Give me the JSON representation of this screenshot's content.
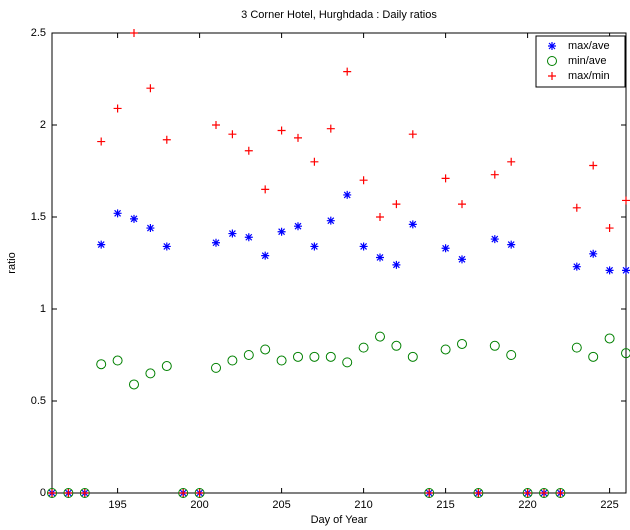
{
  "chart_data": {
    "type": "scatter",
    "title": "3 Corner Hotel, Hurghdada : Daily ratios",
    "x_label": "Day of Year",
    "y_label": "ratio",
    "x": [
      191,
      192,
      193,
      194,
      195,
      196,
      197,
      198,
      199,
      200,
      201,
      202,
      203,
      204,
      205,
      206,
      207,
      208,
      209,
      210,
      211,
      212,
      213,
      214,
      215,
      216,
      217,
      218,
      219,
      220,
      221,
      222,
      223,
      224,
      225,
      226
    ],
    "series": [
      {
        "name": "max/ave",
        "color": "#0000ff",
        "marker": "star",
        "values": [
          0,
          0,
          0,
          1.35,
          1.52,
          1.49,
          1.44,
          1.34,
          0,
          0,
          1.36,
          1.41,
          1.39,
          1.29,
          1.42,
          1.45,
          1.34,
          1.48,
          1.62,
          1.34,
          1.28,
          1.24,
          1.46,
          0,
          1.33,
          1.27,
          0,
          1.38,
          1.35,
          0,
          0,
          0,
          1.23,
          1.3,
          1.21,
          1.21
        ]
      },
      {
        "name": "min/ave",
        "color": "#008000",
        "marker": "circle",
        "values": [
          0,
          0,
          0,
          0.7,
          0.72,
          0.59,
          0.65,
          0.69,
          0,
          0,
          0.68,
          0.72,
          0.75,
          0.78,
          0.72,
          0.74,
          0.74,
          0.74,
          0.71,
          0.79,
          0.85,
          0.8,
          0.74,
          0,
          0.78,
          0.81,
          0,
          0.8,
          0.75,
          0,
          0,
          0,
          0.79,
          0.74,
          0.84,
          0.76
        ]
      },
      {
        "name": "max/min",
        "color": "#ff0000",
        "marker": "plus",
        "values": [
          0,
          0,
          0,
          1.91,
          2.09,
          2.5,
          2.2,
          1.92,
          0,
          0,
          2.0,
          1.95,
          1.86,
          1.65,
          1.97,
          1.93,
          1.8,
          1.98,
          2.29,
          1.7,
          1.5,
          1.57,
          1.95,
          0,
          1.71,
          1.57,
          0,
          1.73,
          1.8,
          0,
          0,
          0,
          1.55,
          1.78,
          1.44,
          1.59
        ]
      }
    ],
    "xlim": [
      191,
      226
    ],
    "ylim": [
      0,
      2.5
    ],
    "xticks": [
      195,
      200,
      205,
      210,
      215,
      220,
      225
    ],
    "yticks": [
      0,
      0.5,
      1,
      1.5,
      2,
      2.5
    ],
    "grid": false,
    "legend": "top-right"
  }
}
